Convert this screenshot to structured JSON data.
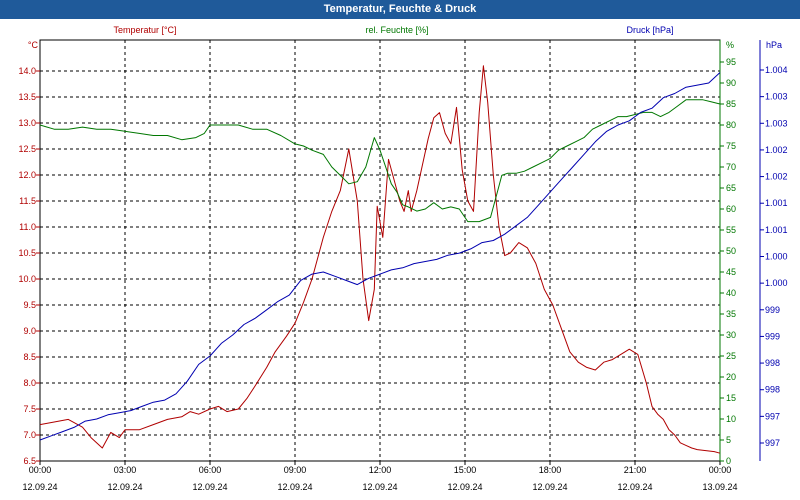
{
  "window": {
    "title": "Temperatur, Feuchte & Druck"
  },
  "colors": {
    "temperature": "#b00000",
    "humidity": "#007700",
    "pressure": "#0000b0",
    "titlebar": "#1f5a9a"
  },
  "chart_data": {
    "type": "line",
    "title": "Temperatur, Feuchte & Druck",
    "grid": true,
    "x": {
      "min": 0,
      "max": 24,
      "ticks": [
        {
          "v": 0,
          "time": "00:00",
          "date": "12.09.24"
        },
        {
          "v": 3,
          "time": "03:00",
          "date": "12.09.24"
        },
        {
          "v": 6,
          "time": "06:00",
          "date": "12.09.24"
        },
        {
          "v": 9,
          "time": "09:00",
          "date": "12.09.24"
        },
        {
          "v": 12,
          "time": "12:00",
          "date": "12.09.24"
        },
        {
          "v": 15,
          "time": "15:00",
          "date": "12.09.24"
        },
        {
          "v": 18,
          "time": "18:00",
          "date": "12.09.24"
        },
        {
          "v": 21,
          "time": "21:00",
          "date": "12.09.24"
        },
        {
          "v": 24,
          "time": "00:00",
          "date": "13.09.24"
        }
      ]
    },
    "axes": {
      "temperature": {
        "label": "Temperatur [°C]",
        "unit": "°C",
        "min": 6.5,
        "max": 14.0,
        "ticks": [
          "6.5",
          "7.0",
          "7.5",
          "8.0",
          "8.5",
          "9.0",
          "9.5",
          "10.0",
          "10.5",
          "11.0",
          "11.5",
          "12.0",
          "12.5",
          "13.0",
          "13.5",
          "14.0"
        ]
      },
      "humidity": {
        "label": "rel. Feuchte [%]",
        "unit": "%",
        "min": 0,
        "max": 95,
        "ticks": [
          "0",
          "5",
          "10",
          "15",
          "20",
          "25",
          "30",
          "35",
          "40",
          "45",
          "50",
          "55",
          "60",
          "65",
          "70",
          "75",
          "80",
          "85",
          "90",
          "95"
        ]
      },
      "pressure": {
        "label": "Druck [hPa]",
        "unit": "hPa",
        "ticks": [
          "997",
          "997",
          "998",
          "998",
          "999",
          "999",
          "1.000",
          "1.000",
          "1.001",
          "1.001",
          "1.002",
          "1.002",
          "1.003",
          "1.003",
          "1.004"
        ]
      }
    },
    "series": [
      {
        "name": "Temperatur [°C]",
        "axis": "temperature",
        "x": [
          0,
          0.5,
          1,
          1.5,
          1.8,
          2.2,
          2.5,
          2.8,
          3,
          3.5,
          4,
          4.5,
          5,
          5.3,
          5.6,
          6,
          6.3,
          6.6,
          7,
          7.3,
          7.6,
          8,
          8.3,
          8.7,
          9,
          9.3,
          9.6,
          10,
          10.3,
          10.6,
          10.9,
          11.2,
          11.4,
          11.6,
          11.8,
          11.9,
          12,
          12.1,
          12.3,
          12.5,
          12.7,
          12.85,
          13,
          13.1,
          13.3,
          13.5,
          13.7,
          13.9,
          14.1,
          14.3,
          14.5,
          14.7,
          14.9,
          15.1,
          15.3,
          15.5,
          15.65,
          15.8,
          16,
          16.2,
          16.4,
          16.6,
          16.9,
          17.2,
          17.5,
          17.8,
          18.1,
          18.4,
          18.7,
          19,
          19.3,
          19.6,
          19.9,
          20.2,
          20.5,
          20.8,
          21.1,
          21.4,
          21.6,
          21.8,
          22,
          22.2,
          22.4,
          22.6,
          22.8,
          23,
          23.2,
          23.5,
          23.8,
          24
        ],
        "y": [
          7.2,
          7.25,
          7.3,
          7.15,
          6.95,
          6.75,
          7.05,
          6.95,
          7.1,
          7.1,
          7.2,
          7.3,
          7.35,
          7.45,
          7.4,
          7.5,
          7.55,
          7.45,
          7.5,
          7.7,
          7.95,
          8.3,
          8.6,
          8.9,
          9.15,
          9.55,
          10.0,
          10.8,
          11.3,
          11.7,
          12.5,
          11.5,
          10.0,
          9.2,
          9.8,
          11.4,
          11.1,
          10.8,
          12.3,
          11.9,
          11.5,
          11.3,
          11.7,
          11.3,
          11.7,
          12.2,
          12.7,
          13.1,
          13.2,
          12.8,
          12.6,
          13.3,
          12.1,
          11.5,
          11.3,
          13.2,
          14.1,
          13.4,
          12.0,
          11.0,
          10.45,
          10.5,
          10.7,
          10.6,
          10.3,
          9.8,
          9.5,
          9.05,
          8.6,
          8.4,
          8.3,
          8.25,
          8.4,
          8.45,
          8.55,
          8.65,
          8.55,
          8.0,
          7.55,
          7.4,
          7.3,
          7.1,
          7.0,
          6.85,
          6.8,
          6.75,
          6.72,
          6.7,
          6.68,
          6.65
        ]
      },
      {
        "name": "rel. Feuchte [%]",
        "axis": "humidity",
        "x": [
          0,
          0.5,
          1,
          1.5,
          2,
          2.5,
          3,
          3.5,
          4,
          4.5,
          5,
          5.5,
          5.8,
          6,
          6.5,
          7,
          7.5,
          8,
          8.5,
          9,
          9.3,
          9.6,
          10,
          10.3,
          10.6,
          10.9,
          11.2,
          11.5,
          11.8,
          12,
          12.2,
          12.4,
          12.6,
          12.8,
          13,
          13.3,
          13.6,
          13.9,
          14.2,
          14.5,
          14.8,
          15.1,
          15.3,
          15.5,
          15.7,
          15.9,
          16.1,
          16.3,
          16.5,
          16.8,
          17.1,
          17.4,
          17.7,
          18,
          18.3,
          18.6,
          18.9,
          19.2,
          19.5,
          19.8,
          20.1,
          20.4,
          20.7,
          21,
          21.3,
          21.6,
          21.9,
          22.2,
          22.5,
          22.8,
          23.1,
          23.4,
          23.7,
          24
        ],
        "y": [
          80,
          79,
          79,
          79.5,
          79,
          79,
          78.5,
          78,
          77.5,
          77.5,
          76.5,
          77,
          78,
          80,
          80,
          80,
          79,
          79,
          77.5,
          75.5,
          75,
          74,
          73,
          70,
          68,
          66,
          66.5,
          70,
          77,
          74,
          70,
          66,
          64,
          61,
          60.5,
          59.5,
          60,
          61.5,
          60,
          60.5,
          60,
          57,
          57,
          57,
          57.5,
          58,
          63,
          68,
          68.5,
          68.5,
          69,
          70,
          71,
          72,
          74,
          75,
          76,
          77,
          79,
          80,
          81,
          82,
          82,
          82.5,
          83,
          83,
          82,
          83,
          84.5,
          86,
          86,
          86,
          85.5,
          85
        ]
      },
      {
        "name": "Druck [hPa]",
        "axis": "pressure",
        "x": [
          0,
          0.4,
          0.8,
          1.2,
          1.6,
          2,
          2.4,
          2.8,
          3.2,
          3.6,
          4,
          4.4,
          4.8,
          5.2,
          5.6,
          6,
          6.4,
          6.8,
          7.2,
          7.6,
          8,
          8.4,
          8.8,
          9.2,
          9.6,
          10,
          10.4,
          10.8,
          11.2,
          11.6,
          12,
          12.4,
          12.8,
          13.2,
          13.6,
          14,
          14.4,
          14.8,
          15.2,
          15.6,
          16,
          16.4,
          16.8,
          17.2,
          17.6,
          18,
          18.4,
          18.8,
          19.2,
          19.6,
          20,
          20.4,
          20.8,
          21.2,
          21.6,
          22,
          22.4,
          22.8,
          23.2,
          23.6,
          24
        ],
        "y": [
          5,
          6,
          7,
          8,
          9.5,
          10,
          11,
          11.5,
          12,
          13,
          14,
          14.5,
          16,
          19,
          23,
          25,
          28,
          30,
          32.5,
          34,
          36,
          38,
          39.5,
          43,
          44.5,
          45,
          44,
          43,
          42,
          43.5,
          44.5,
          45.5,
          46,
          47,
          47.5,
          48,
          49,
          49.5,
          50.5,
          52,
          52.5,
          54,
          56,
          58,
          61,
          64,
          67,
          70,
          73,
          76,
          78.5,
          80,
          81,
          83,
          84,
          86.5,
          87.5,
          89,
          89.5,
          90,
          92.5
        ]
      }
    ]
  }
}
